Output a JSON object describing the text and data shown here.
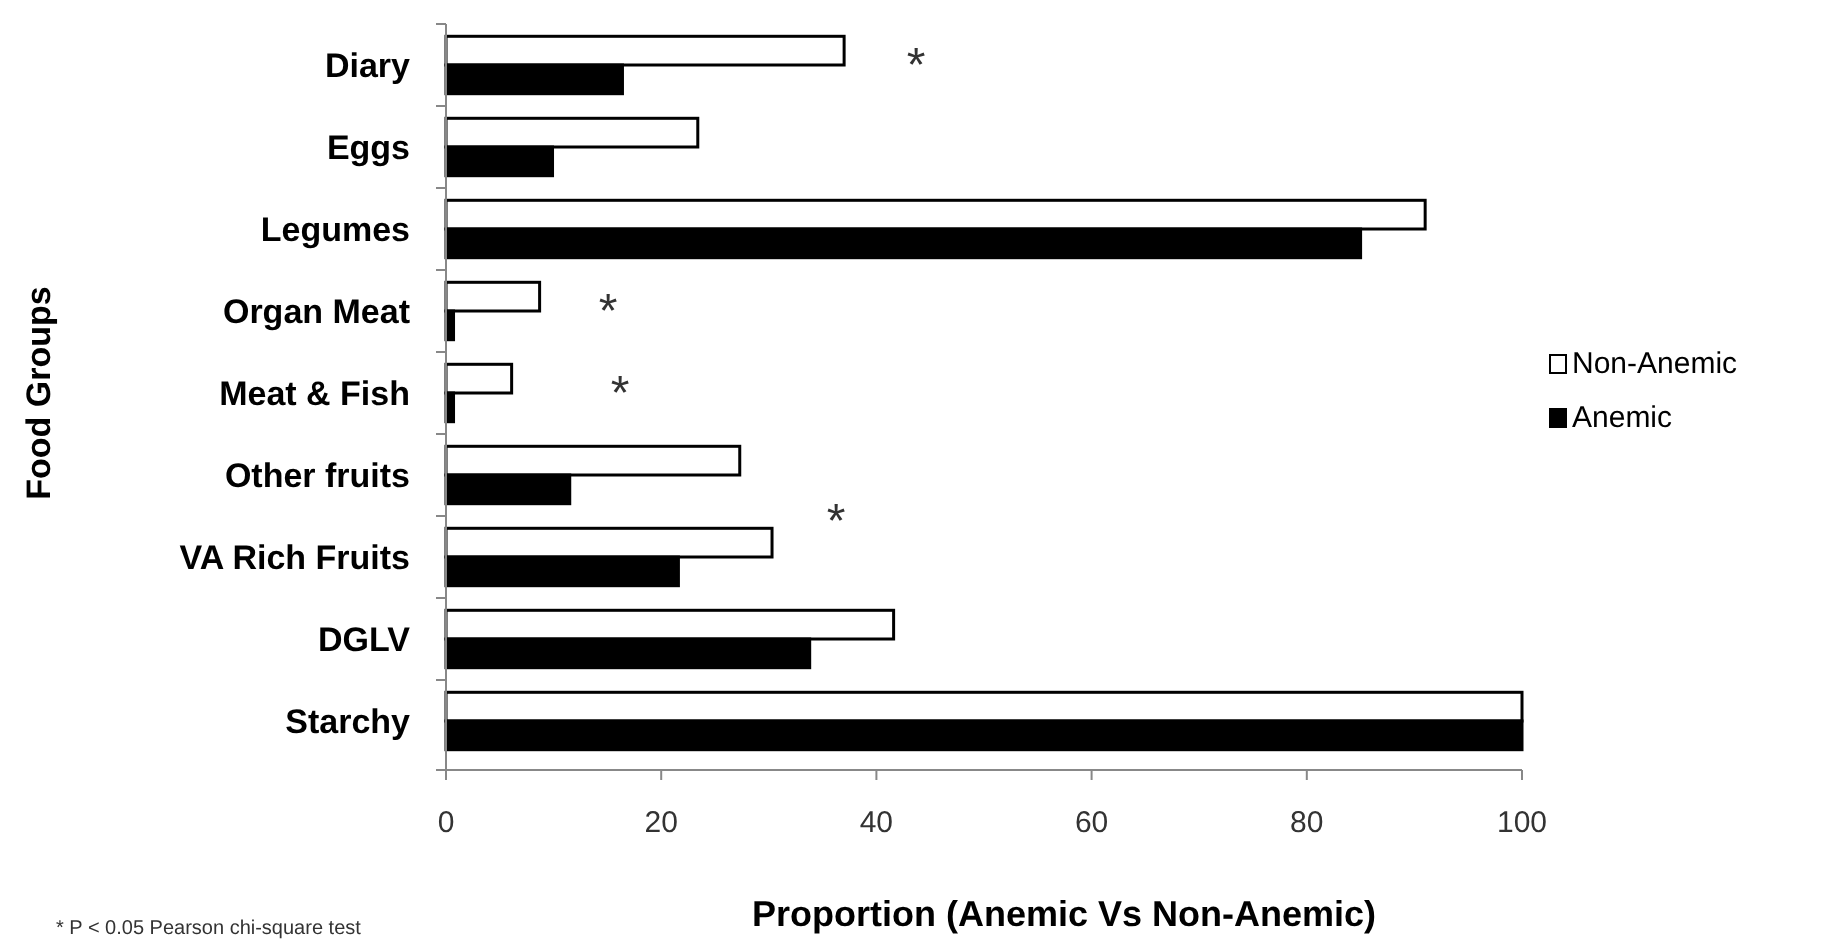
{
  "chart_data": {
    "type": "bar",
    "orientation": "horizontal",
    "xlabel": "Proportion (Anemic Vs Non-Anemic)",
    "ylabel": "Food Groups",
    "categories": [
      "Diary",
      "Eggs",
      "Legumes",
      "Organ Meat",
      "Meat & Fish",
      "Other fruits",
      "VA Rich Fruits",
      "DGLV",
      "Starchy"
    ],
    "series": [
      {
        "name": "Non-Anemic",
        "color": "#ffffff",
        "values": [
          37,
          23.4,
          91,
          8.7,
          6.1,
          27.3,
          30.3,
          41.6,
          100
        ]
      },
      {
        "name": "Anemic",
        "color": "#000000",
        "values": [
          16.4,
          9.9,
          85,
          0.7,
          0.7,
          11.5,
          21.6,
          33.8,
          100
        ]
      }
    ],
    "xlim": [
      0,
      100
    ],
    "xticks": [
      0,
      20,
      40,
      60,
      80,
      100
    ],
    "grid": false,
    "legend": "right",
    "annotations": [
      "*",
      "*",
      "*",
      "*",
      "* P < 0.05 Pearson chi-square test"
    ]
  }
}
